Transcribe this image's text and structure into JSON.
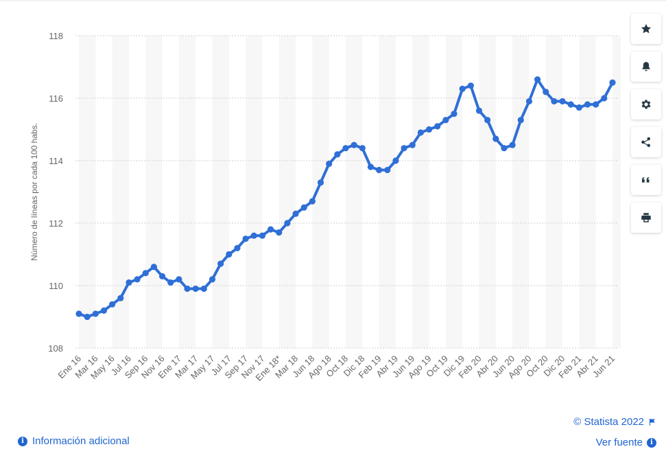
{
  "chart_data": {
    "type": "line",
    "ylabel": "Número de líneas por cada 100 habs.",
    "ylim": [
      108,
      118
    ],
    "yticks": [
      "108",
      "110",
      "112",
      "114",
      "116",
      "118"
    ],
    "grid": true,
    "legend": "none",
    "color": "#2f6fd6",
    "tick_labels": [
      "Ene 16",
      "Mar 16",
      "May 16",
      "Jul 16",
      "Sep 16",
      "Nov 16",
      "Ene 17",
      "Mar 17",
      "May 17",
      "Jul 17",
      "Sep 17",
      "Nov 17",
      "Ene 18*",
      "Mar 18",
      "Jun 18",
      "Ago 18",
      "Oct 18",
      "Dic 18",
      "Feb 19",
      "Abr 19",
      "Jun 19",
      "Ago 19",
      "Oct 19",
      "Dic 19",
      "Feb 20",
      "Abr 20",
      "Jun 20",
      "Ago 20",
      "Oct 20",
      "Dic 20",
      "Feb 21",
      "Abr 21",
      "Jun 21"
    ],
    "series": [
      {
        "values": [
          109.1,
          109.0,
          109.1,
          109.2,
          109.4,
          109.6,
          110.1,
          110.2,
          110.4,
          110.6,
          110.3,
          110.1,
          110.2,
          109.9,
          109.9,
          109.9,
          110.2,
          110.7,
          111.0,
          111.2,
          111.5,
          111.6,
          111.6,
          111.8,
          111.7,
          112.0,
          112.3,
          112.5,
          112.7,
          113.3,
          113.9,
          114.2,
          114.4,
          114.5,
          114.4,
          113.8,
          113.7,
          113.7,
          114.0,
          114.4,
          114.5,
          114.9,
          115.0,
          115.1,
          115.3,
          115.5,
          116.3,
          116.4,
          115.6,
          115.3,
          114.7,
          114.4,
          114.5,
          115.3,
          115.9,
          116.6,
          116.2,
          115.9,
          115.9,
          115.8,
          115.7,
          115.8,
          115.8,
          116.0,
          116.5
        ]
      }
    ]
  },
  "toolbar": {
    "buttons": [
      {
        "icon": "star-icon"
      },
      {
        "icon": "bell-icon"
      },
      {
        "icon": "gear-icon"
      },
      {
        "icon": "share-icon"
      },
      {
        "icon": "quote-icon"
      },
      {
        "icon": "print-icon"
      }
    ]
  },
  "footer": {
    "copyright": "© Statista 2022",
    "source_label": "Ver fuente",
    "info_label": "Información adicional"
  }
}
